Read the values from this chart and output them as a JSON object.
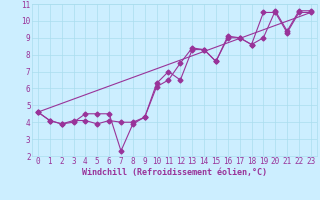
{
  "title": "",
  "xlabel": "Windchill (Refroidissement éolien,°C)",
  "ylabel": "",
  "background_color": "#cceeff",
  "grid_color": "#aaddee",
  "line_color": "#993399",
  "xlim": [
    -0.5,
    23.5
  ],
  "ylim": [
    2,
    11
  ],
  "xticks": [
    0,
    1,
    2,
    3,
    4,
    5,
    6,
    7,
    8,
    9,
    10,
    11,
    12,
    13,
    14,
    15,
    16,
    17,
    18,
    19,
    20,
    21,
    22,
    23
  ],
  "yticks": [
    2,
    3,
    4,
    5,
    6,
    7,
    8,
    9,
    10,
    11
  ],
  "series1_x": [
    0,
    1,
    2,
    3,
    4,
    5,
    6,
    7,
    8,
    9,
    10,
    11,
    12,
    13,
    14,
    15,
    16,
    17,
    18,
    19,
    20,
    21,
    22,
    23
  ],
  "series1_y": [
    4.6,
    4.1,
    3.9,
    4.0,
    4.5,
    4.5,
    4.5,
    2.3,
    3.9,
    4.3,
    6.3,
    7.0,
    6.5,
    8.3,
    8.3,
    7.6,
    9.0,
    9.0,
    8.6,
    10.5,
    10.5,
    9.3,
    10.5,
    10.5
  ],
  "series2_x": [
    0,
    1,
    2,
    3,
    4,
    5,
    6,
    7,
    8,
    9,
    10,
    11,
    12,
    13,
    14,
    15,
    16,
    17,
    18,
    19,
    20,
    21,
    22,
    23
  ],
  "series2_y": [
    4.6,
    4.1,
    3.9,
    4.1,
    4.1,
    3.9,
    4.1,
    4.0,
    4.0,
    4.3,
    6.1,
    6.5,
    7.5,
    8.4,
    8.3,
    7.6,
    9.1,
    9.0,
    8.6,
    9.0,
    10.6,
    9.4,
    10.6,
    10.6
  ],
  "series3_x": [
    0,
    23
  ],
  "series3_y": [
    4.6,
    10.5
  ],
  "marker": "D",
  "markersize": 2.5,
  "linewidth": 0.8,
  "tick_fontsize": 5.5,
  "xlabel_fontsize": 6.0
}
